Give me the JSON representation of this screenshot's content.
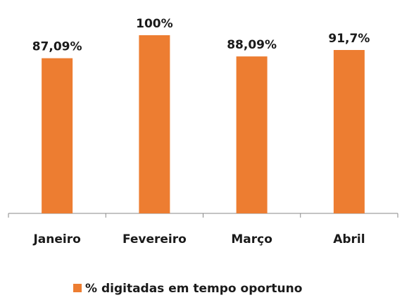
{
  "chart_data": {
    "type": "bar",
    "categories": [
      "Janeiro",
      "Fevereiro",
      "Março",
      "Abril"
    ],
    "series": [
      {
        "name": "% digitadas em tempo oportuno",
        "color": "#ed7d31",
        "values": [
          87.09,
          100,
          88.09,
          91.7
        ],
        "value_labels": [
          "87,09%",
          "100%",
          "88,09%",
          "91,7%"
        ]
      }
    ],
    "legend": "bottom"
  }
}
